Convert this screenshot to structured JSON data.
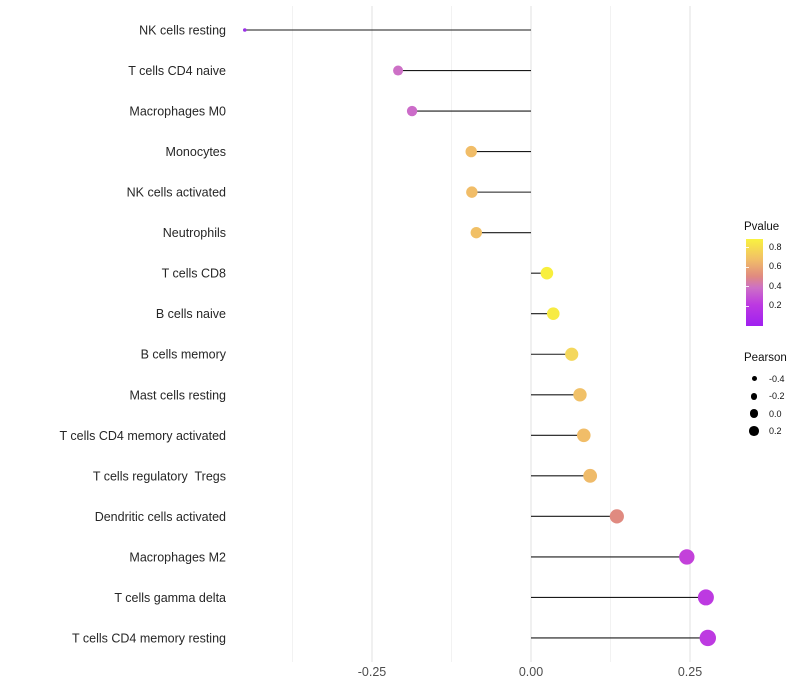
{
  "chart_data": {
    "type": "scatter",
    "variant": "lollipop",
    "title": "",
    "xlabel": "",
    "ylabel": "",
    "xlim": [
      -0.47,
      0.31
    ],
    "grid": "on",
    "x_axis": {
      "major_ticks": [
        -0.25,
        0.0,
        0.25
      ],
      "major_tick_labels": [
        "-0.25",
        "0.00",
        "0.25"
      ],
      "minor_ticks": [
        -0.375,
        -0.125,
        0.125
      ]
    },
    "rows": [
      {
        "label": "NK cells resting",
        "pearson": -0.45,
        "pvalue": 0.04,
        "color": "#9b30e8",
        "r": 1.8
      },
      {
        "label": "T cells CD4 naive",
        "pearson": -0.209,
        "pvalue": 0.38,
        "color": "#cd70c6",
        "r": 5.0
      },
      {
        "label": "Macrophages M0",
        "pearson": -0.187,
        "pvalue": 0.37,
        "color": "#cc6cc9",
        "r": 5.2
      },
      {
        "label": "Monocytes",
        "pearson": -0.094,
        "pvalue": 0.66,
        "color": "#f1bd68",
        "r": 5.7
      },
      {
        "label": "NK cells activated",
        "pearson": -0.093,
        "pvalue": 0.66,
        "color": "#f1bd68",
        "r": 5.7
      },
      {
        "label": "Neutrophils",
        "pearson": -0.086,
        "pvalue": 0.67,
        "color": "#f1c066",
        "r": 5.7
      },
      {
        "label": "T cells CD8",
        "pearson": 0.025,
        "pvalue": 0.87,
        "color": "#f8ef3d",
        "r": 6.3
      },
      {
        "label": "B cells naive",
        "pearson": 0.035,
        "pvalue": 0.85,
        "color": "#f7eb42",
        "r": 6.3
      },
      {
        "label": "B cells memory",
        "pearson": 0.064,
        "pvalue": 0.75,
        "color": "#f4d75c",
        "r": 6.6
      },
      {
        "label": "Mast cells resting",
        "pearson": 0.077,
        "pvalue": 0.68,
        "color": "#f1c168",
        "r": 6.7
      },
      {
        "label": "T cells CD4 memory activated",
        "pearson": 0.083,
        "pvalue": 0.66,
        "color": "#f1bd68",
        "r": 6.8
      },
      {
        "label": "T cells regulatory  Tregs",
        "pearson": 0.093,
        "pvalue": 0.65,
        "color": "#efbb6a",
        "r": 6.9
      },
      {
        "label": "Dendritic cells activated",
        "pearson": 0.135,
        "pvalue": 0.5,
        "color": "#e08a80",
        "r": 7.1
      },
      {
        "label": "Macrophages M2",
        "pearson": 0.245,
        "pvalue": 0.25,
        "color": "#c341da",
        "r": 7.7
      },
      {
        "label": "T cells gamma delta",
        "pearson": 0.275,
        "pvalue": 0.22,
        "color": "#bd3ae1",
        "r": 8.0
      },
      {
        "label": "T cells CD4 memory resting",
        "pearson": 0.278,
        "pvalue": 0.22,
        "color": "#bd3ae1",
        "r": 8.2
      }
    ],
    "legend_position": "right",
    "legends": {
      "pvalue": {
        "title": "Pvalue",
        "tick_labels": [
          "0.8",
          "0.6",
          "0.4",
          "0.2"
        ],
        "gradient_top_to_bottom": [
          {
            "stop": 0,
            "color": "#f9f240"
          },
          {
            "stop": 24,
            "color": "#f1bd68"
          },
          {
            "stop": 43,
            "color": "#e08a80"
          },
          {
            "stop": 56,
            "color": "#cd70c6"
          },
          {
            "stop": 75,
            "color": "#bd3ae1"
          },
          {
            "stop": 100,
            "color": "#a020f0"
          }
        ]
      },
      "pearson": {
        "title": "Pearson",
        "items": [
          {
            "label": "-0.4",
            "diameter": 5.0
          },
          {
            "label": "-0.2",
            "diameter": 6.8
          },
          {
            "label": "0.0",
            "diameter": 8.6
          },
          {
            "label": "0.2",
            "diameter": 9.6
          }
        ]
      }
    },
    "style": {
      "stem_color": "#1a1a1a",
      "major_grid_color": "#e3e3e3",
      "minor_grid_color": "#f1f1f1",
      "axis_text_color": "#4d4d4d",
      "category_text_color": "#262626"
    }
  }
}
